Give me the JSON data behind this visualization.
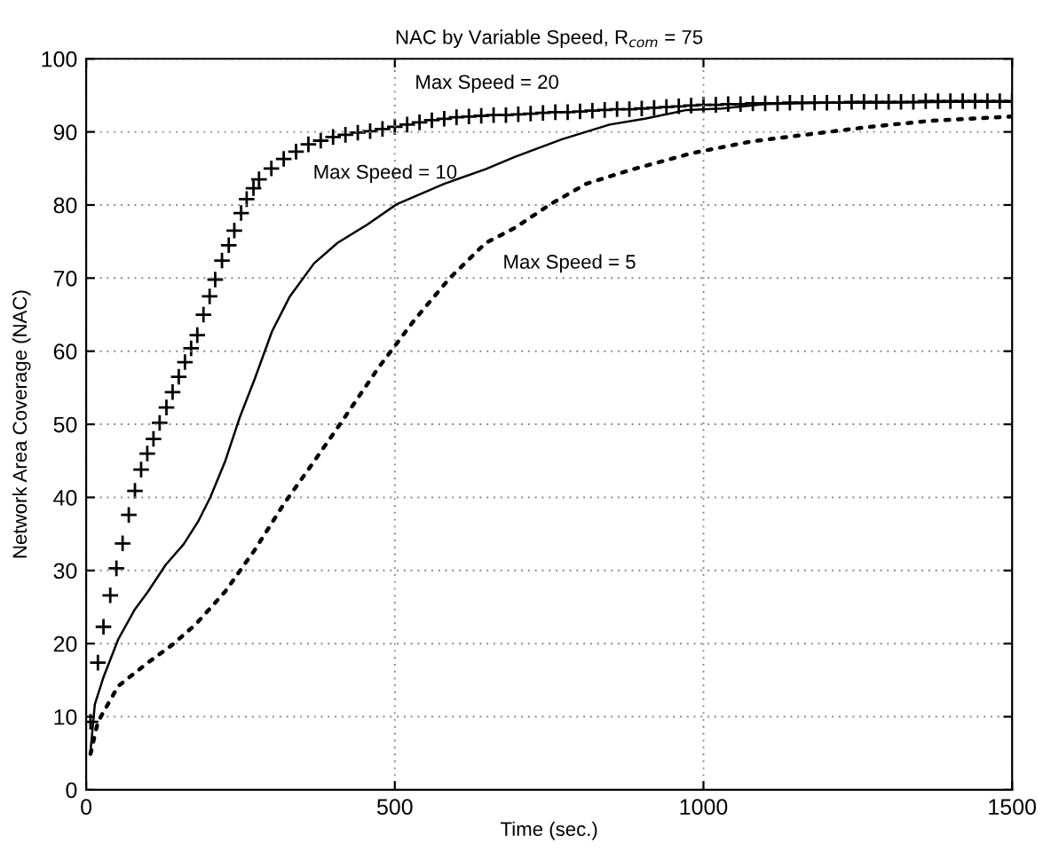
{
  "chart_data": {
    "type": "line",
    "title": "NAC by Variable Speed, R$_{com}$ = 75",
    "xlabel": "Time (sec.)",
    "ylabel": "Network Area Coverage (NAC)",
    "xlim": [
      0,
      1500
    ],
    "ylim": [
      0,
      100
    ],
    "xticks": [
      0,
      500,
      1000,
      1500
    ],
    "yticks": [
      0,
      10,
      20,
      30,
      40,
      50,
      60,
      70,
      80,
      90,
      100
    ],
    "grid": true,
    "legend": false,
    "series": [
      {
        "type": "scatter",
        "marker": "cross",
        "color": "#000000",
        "x": [
          7,
          19,
          28,
          39,
          49,
          59,
          69,
          79,
          89,
          99,
          109,
          119,
          130,
          140,
          150,
          160,
          170,
          180,
          190,
          200,
          209,
          220,
          231,
          240,
          251,
          260,
          271,
          280,
          300,
          320,
          340,
          360,
          380,
          400,
          420,
          440,
          460,
          480,
          500,
          520,
          540,
          560,
          580,
          600,
          620,
          640,
          660,
          680,
          700,
          720,
          740,
          760,
          780,
          800,
          820,
          840,
          860,
          880,
          900,
          920,
          940,
          960,
          980,
          1000,
          1020,
          1040,
          1060,
          1080,
          1100,
          1120,
          1140,
          1160,
          1180,
          1200,
          1220,
          1240,
          1260,
          1280,
          1300,
          1320,
          1340,
          1360,
          1380,
          1400,
          1420,
          1440,
          1460,
          1480,
          1500
        ],
        "values": [
          9.3,
          17.4,
          22.3,
          26.6,
          30.3,
          33.7,
          37.6,
          40.9,
          43.8,
          46,
          48,
          50.2,
          52.3,
          54.4,
          56.5,
          58.5,
          60.4,
          62.2,
          65,
          67.5,
          69.8,
          72.4,
          74.5,
          76.5,
          78.9,
          80.8,
          82.3,
          83.5,
          85,
          86.3,
          87.3,
          88.3,
          88.8,
          89.3,
          89.6,
          89.9,
          90.1,
          90.4,
          90.7,
          91,
          91.3,
          91.6,
          91.8,
          92,
          92.1,
          92.2,
          92.3,
          92.3,
          92.4,
          92.5,
          92.6,
          92.7,
          92.7,
          92.8,
          92.9,
          93,
          93.1,
          93.1,
          93.2,
          93.3,
          93.4,
          93.5,
          93.6,
          93.7,
          93.7,
          93.8,
          93.8,
          93.9,
          93.9,
          93.9,
          94,
          94,
          94,
          94,
          94,
          94.1,
          94.1,
          94.1,
          94.1,
          94.1,
          94.1,
          94.2,
          94.2,
          94.2,
          94.2,
          94.2,
          94.2,
          94.2,
          94.2
        ]
      },
      {
        "line_style": "solid",
        "color": "#000000",
        "x": [
          7,
          14,
          28,
          52,
          79,
          100,
          129,
          158,
          182,
          201,
          225,
          249,
          273,
          301,
          330,
          369,
          407,
          455,
          503,
          580,
          647,
          695,
          771,
          848,
          905,
          973,
          1030,
          1100,
          1200,
          1300,
          1400,
          1500
        ],
        "values": [
          5.3,
          11.7,
          15.4,
          20.6,
          24.7,
          27.1,
          30.8,
          33.6,
          36.8,
          40,
          44.9,
          51,
          56.2,
          62.7,
          67.5,
          72,
          74.8,
          77.3,
          80.1,
          82.9,
          84.9,
          86.6,
          89,
          91,
          91.8,
          93,
          93.2,
          93.8,
          94,
          94,
          94.1,
          94.1
        ]
      },
      {
        "type": "line",
        "line_style": "dotted",
        "color": "#000000",
        "x": [
          7,
          19,
          52,
          100,
          139,
          177,
          225,
          273,
          321,
          369,
          416,
          474,
          532,
          589,
          647,
          695,
          752,
          810,
          886,
          982,
          1078,
          1174,
          1270,
          1366,
          1500
        ],
        "values": [
          4.9,
          9.3,
          14.2,
          17.4,
          19.8,
          22.6,
          27.1,
          32.8,
          39.2,
          44.9,
          50.6,
          57.8,
          64.3,
          70,
          74.8,
          76.9,
          80.1,
          82.9,
          84.9,
          87.1,
          88.7,
          89.7,
          90.7,
          91.5,
          92.1
        ]
      }
    ],
    "annotations": [
      "Max Speed = 20",
      "Max Speed = 10",
      "Max Speed = 5"
    ]
  }
}
